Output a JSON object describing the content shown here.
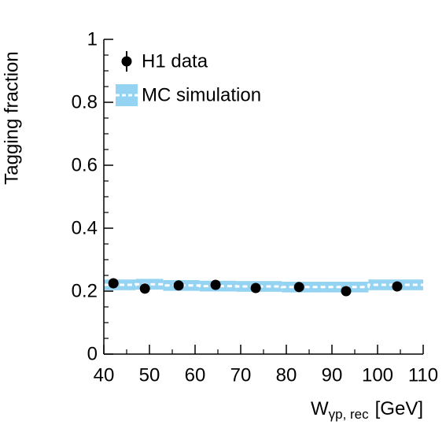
{
  "chart_data": {
    "type": "scatter",
    "y_label": "Tagging fraction",
    "x_label": {
      "main": "W",
      "sub": "γp, rec",
      "unit": "[GeV]"
    },
    "xlim": [
      40,
      110
    ],
    "xticks": [
      40,
      50,
      60,
      70,
      80,
      90,
      100,
      110
    ],
    "ylim": [
      0,
      1
    ],
    "yticks": [
      0,
      0.2,
      0.4,
      0.6,
      0.8,
      1
    ],
    "minor_divisions": {
      "x": 2,
      "y": 4
    },
    "data": {
      "name": "H1 data",
      "color": "#000000",
      "x": [
        42.1,
        49,
        56.4,
        64.5,
        73.3,
        82.8,
        93.1,
        104.3
      ],
      "values": [
        0.225,
        0.208,
        0.218,
        0.22,
        0.21,
        0.213,
        0.2,
        0.215
      ]
    },
    "mc": {
      "name": "MC simulation",
      "color": "#94d3f2",
      "bins": [
        40,
        47,
        53,
        61,
        69,
        79,
        88,
        98,
        110
      ],
      "values": [
        0.22,
        0.222,
        0.218,
        0.216,
        0.215,
        0.213,
        0.213,
        0.22
      ],
      "errors": [
        0.017,
        0.017,
        0.017,
        0.017,
        0.017,
        0.017,
        0.017,
        0.017
      ]
    }
  }
}
